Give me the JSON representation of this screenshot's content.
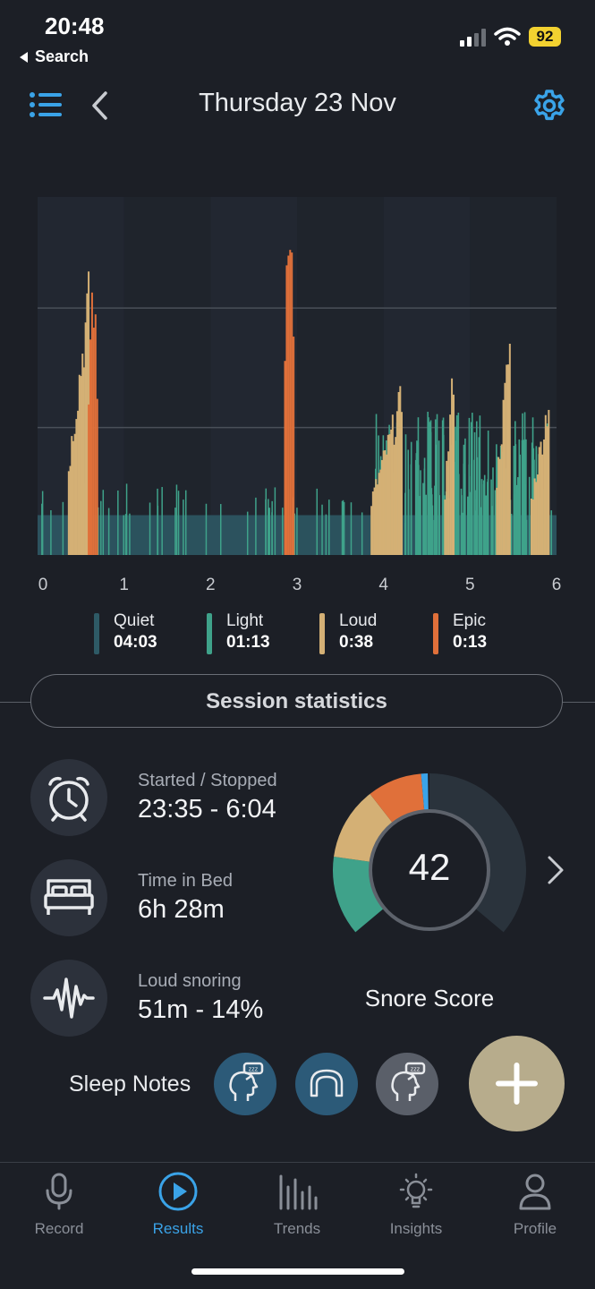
{
  "status_bar": {
    "time": "20:48",
    "back_label": "Search",
    "battery": "92"
  },
  "header": {
    "title": "Thursday 23 Nov"
  },
  "colors": {
    "background": "#1c1f26",
    "quiet": "#2e5a66",
    "light": "#3fa28a",
    "loud": "#d4b075",
    "epic": "#e0703a",
    "accent": "#3aa3e8"
  },
  "chart_data": {
    "type": "bar",
    "x_ticks": [
      "0",
      "1",
      "2",
      "3",
      "4",
      "5",
      "6"
    ],
    "x_range": [
      0,
      6
    ],
    "categories": [
      "Quiet",
      "Light",
      "Loud",
      "Epic"
    ],
    "grid": true,
    "series_summary": [
      {
        "name": "Quiet",
        "duration": "04:03"
      },
      {
        "name": "Light",
        "duration": "01:13"
      },
      {
        "name": "Loud",
        "duration": "0:38"
      },
      {
        "name": "Epic",
        "duration": "0:13"
      }
    ],
    "bursts": [
      {
        "x_start": 0.35,
        "x_end": 0.58,
        "peak": 0.72,
        "level": "Loud"
      },
      {
        "x_start": 0.58,
        "x_end": 0.68,
        "peak": 0.74,
        "level": "Epic"
      },
      {
        "x_start": 2.85,
        "x_end": 2.95,
        "peak": 1.0,
        "level": "Epic"
      },
      {
        "x_start": 3.85,
        "x_end": 4.2,
        "peak": 0.44,
        "level": "Loud"
      },
      {
        "x_start": 4.7,
        "x_end": 4.8,
        "peak": 0.52,
        "level": "Loud"
      },
      {
        "x_start": 5.3,
        "x_end": 5.45,
        "peak": 0.6,
        "level": "Loud"
      },
      {
        "x_start": 5.7,
        "x_end": 5.9,
        "peak": 0.44,
        "level": "Loud"
      }
    ]
  },
  "section": {
    "title": "Session statistics"
  },
  "stats": [
    {
      "icon": "alarm-clock-icon",
      "label": "Started / Stopped",
      "value": "23:35 - 6:04"
    },
    {
      "icon": "bed-icon",
      "label": "Time in Bed",
      "value": "6h 28m"
    },
    {
      "icon": "waveform-icon",
      "label": "Loud snoring",
      "value": "51m - 14%"
    }
  ],
  "score": {
    "value": "42",
    "label": "Snore Score"
  },
  "notes": {
    "label": "Sleep Notes",
    "items": [
      "sleep-head-icon",
      "mouthguard-icon",
      "sleep-head-icon"
    ]
  },
  "tabs": [
    {
      "label": "Record",
      "icon": "microphone-icon",
      "active": false
    },
    {
      "label": "Results",
      "icon": "play-icon",
      "active": true
    },
    {
      "label": "Trends",
      "icon": "bars-icon",
      "active": false
    },
    {
      "label": "Insights",
      "icon": "lightbulb-icon",
      "active": false
    },
    {
      "label": "Profile",
      "icon": "person-icon",
      "active": false
    }
  ]
}
